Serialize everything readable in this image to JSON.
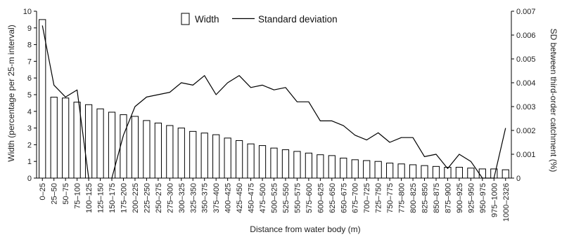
{
  "chart_data": {
    "type": "bar",
    "xlabel": "Distance from water body (m)",
    "ylabel_left": "Width (percentage per 25-m interval)",
    "ylabel_right": "SD between third-order catchment (%)",
    "ylim_left": [
      0,
      10
    ],
    "ylim_right": [
      0,
      0.007
    ],
    "yticks_left": [
      "0",
      "1",
      "2",
      "3",
      "4",
      "5",
      "6",
      "7",
      "8",
      "9",
      "10"
    ],
    "yticks_right": [
      "0",
      "0.001",
      "0.002",
      "0.003",
      "0.004",
      "0.005",
      "0.006",
      "0.007"
    ],
    "grid": false,
    "legend_position": "top",
    "categories": [
      "0–25",
      "25–50",
      "50–75",
      "75–100",
      "100–125",
      "125–150",
      "150–175",
      "175–200",
      "200–225",
      "225–250",
      "250–275",
      "275–300",
      "300–325",
      "325–350",
      "350–375",
      "375–400",
      "400–425",
      "425–450",
      "450–475",
      "475–500",
      "500–525",
      "525–550",
      "550–575",
      "575–600",
      "600–625",
      "625–650",
      "650–675",
      "675–700",
      "700–725",
      "725–750",
      "750–775",
      "775–800",
      "800–825",
      "825–850",
      "850–875",
      "875–900",
      "900–925",
      "925–950",
      "950–975",
      "975–1000",
      "1000–2326"
    ],
    "series": [
      {
        "name": "Width",
        "type": "bar",
        "axis": "left",
        "values": [
          9.5,
          4.85,
          4.8,
          4.55,
          4.4,
          4.15,
          3.95,
          3.8,
          3.7,
          3.45,
          3.3,
          3.15,
          3.0,
          2.8,
          2.7,
          2.6,
          2.4,
          2.25,
          2.05,
          1.95,
          1.8,
          1.7,
          1.6,
          1.5,
          1.4,
          1.35,
          1.2,
          1.1,
          1.05,
          1.0,
          0.9,
          0.85,
          0.8,
          0.75,
          0.7,
          0.65,
          0.65,
          0.6,
          0.55,
          0.55,
          0.5
        ]
      },
      {
        "name": "Standard deviation",
        "type": "line",
        "axis": "right",
        "values": [
          0.0064,
          0.0039,
          0.0034,
          0.0037,
          0.0,
          null,
          0.0,
          0.0018,
          0.003,
          0.0034,
          0.0035,
          0.0036,
          0.004,
          0.0039,
          0.0043,
          0.0035,
          0.004,
          0.0043,
          0.0038,
          0.0039,
          0.0037,
          0.0038,
          0.0032,
          0.0032,
          0.0024,
          0.0024,
          0.0022,
          0.0018,
          0.0016,
          0.0019,
          0.0015,
          0.0017,
          0.0017,
          0.0009,
          0.001,
          0.0004,
          0.001,
          0.0007,
          0.0,
          0.0,
          0.0021
        ]
      }
    ]
  }
}
